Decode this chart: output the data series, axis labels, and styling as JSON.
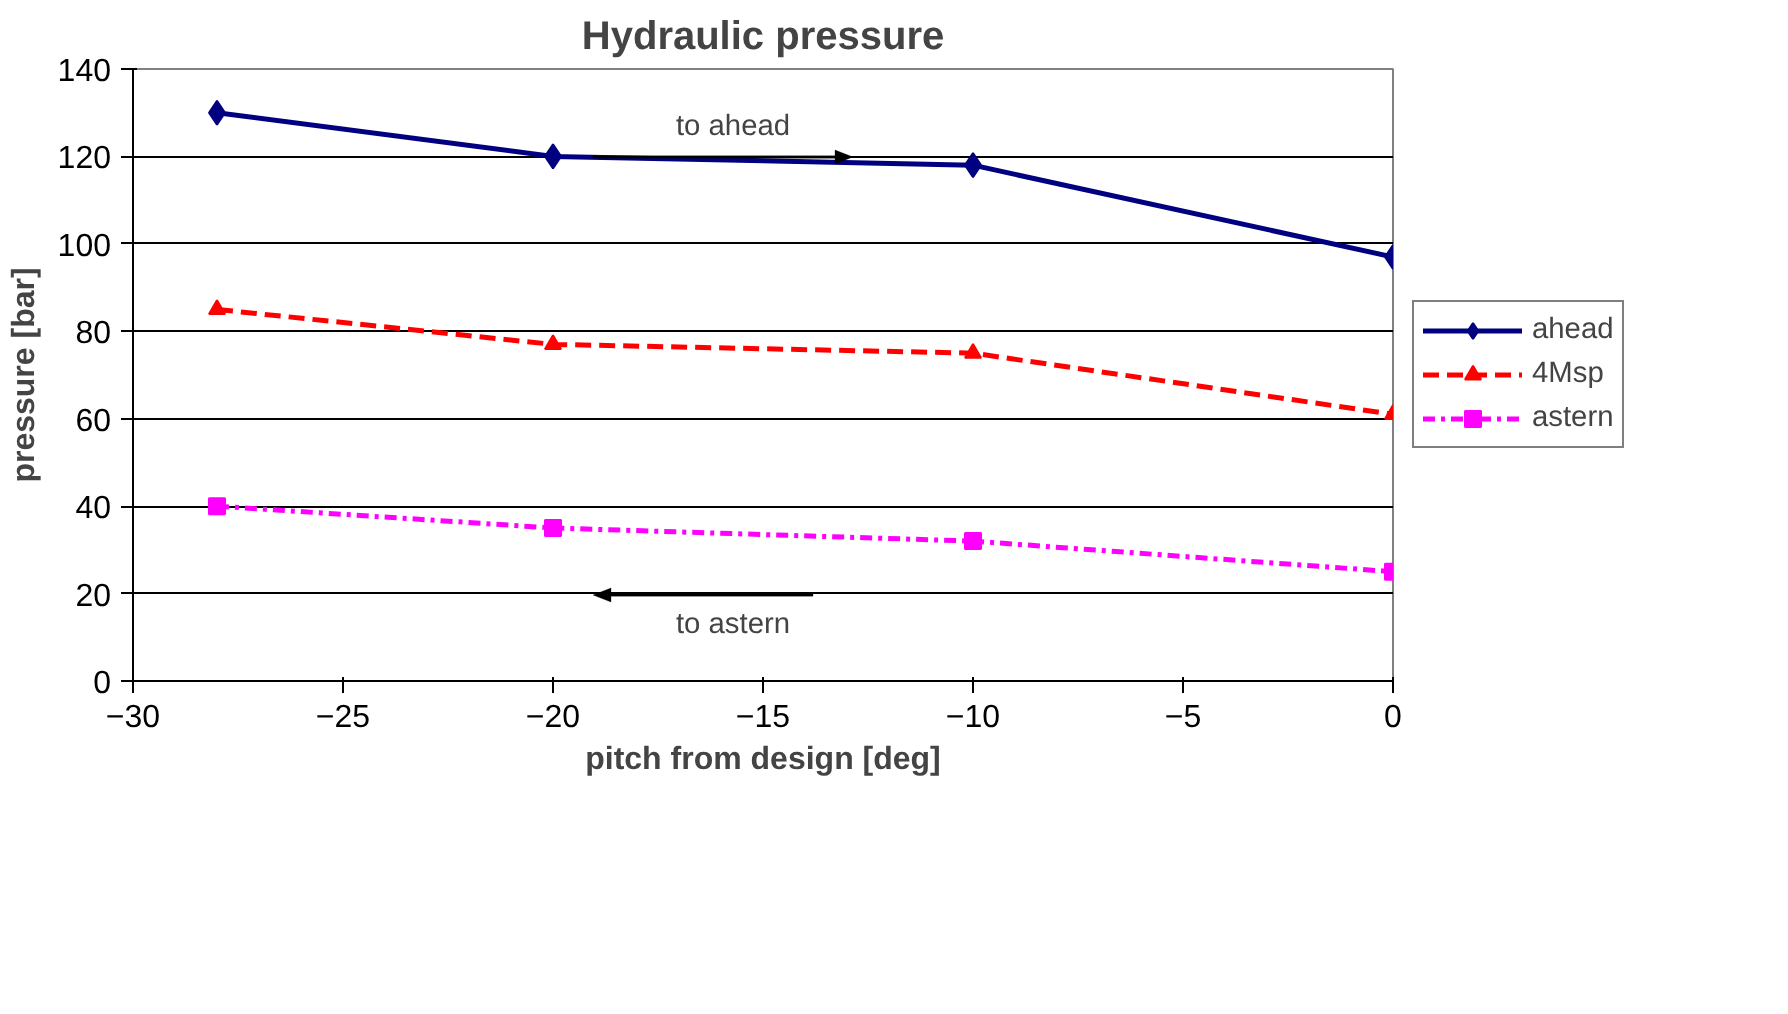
{
  "chart_data": {
    "type": "line",
    "title": "Hydraulic pressure",
    "xlabel": "pitch from design [deg]",
    "ylabel": "pressure [bar]",
    "x": [
      -28,
      -20,
      -10,
      0
    ],
    "series": [
      {
        "name": "ahead",
        "color": "#000080",
        "values": [
          130,
          120,
          118,
          97
        ],
        "marker": "diamond",
        "line_style": "solid"
      },
      {
        "name": "4Msp",
        "color": "#ff0000",
        "values": [
          85,
          77,
          75,
          61
        ],
        "marker": "triangle",
        "line_style": "dashed"
      },
      {
        "name": "astern",
        "color": "#ff00ff",
        "values": [
          40,
          35,
          32,
          25
        ],
        "marker": "square",
        "line_style": "dashdot"
      }
    ],
    "annotations": [
      "to ahead",
      "to astern"
    ],
    "xlim": [
      -30,
      0
    ],
    "xticks": [
      -30,
      -25,
      -20,
      -15,
      -10,
      -5,
      0
    ],
    "ylim": [
      0,
      140
    ],
    "yticks": [
      0,
      20,
      40,
      60,
      80,
      100,
      120,
      140
    ],
    "grid": "y",
    "legend": "right"
  }
}
